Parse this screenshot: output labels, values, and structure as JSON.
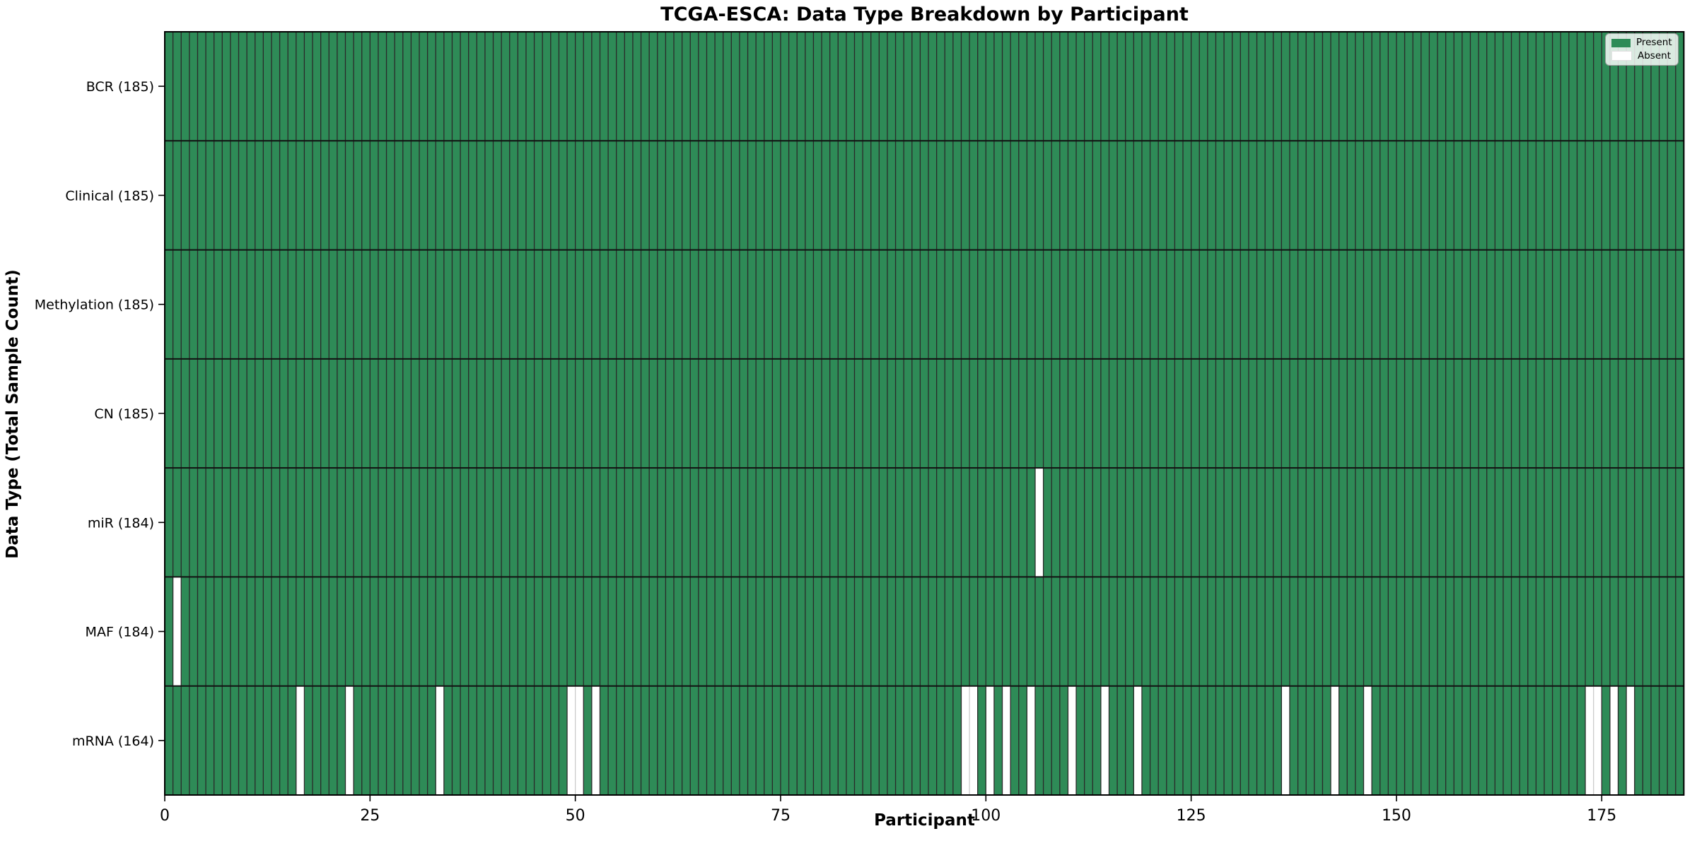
{
  "title": "TCGA-ESCA: Data Type Breakdown by Participant",
  "xlabel": "Participant",
  "ylabel": "Data Type (Total Sample Count)",
  "legend": {
    "present_label": "Present",
    "absent_label": "Absent"
  },
  "colors": {
    "present": "#2e8b57",
    "absent": "#ffffff",
    "bar_edge_dark": "#2a2a2a",
    "bar_edge_light": "#cccccc",
    "row_divider": "#111111",
    "plot_border": "#000000",
    "tick": "#000000",
    "text": "#000000"
  },
  "chart_data": {
    "type": "heatmap",
    "title": "TCGA-ESCA: Data Type Breakdown by Participant",
    "xlabel": "Participant",
    "ylabel": "Data Type (Total Sample Count)",
    "n_participants": 185,
    "x_ticks": [
      0,
      25,
      50,
      75,
      100,
      125,
      150,
      175
    ],
    "legend_position": "upper right",
    "rows": [
      {
        "label": "BCR (185)",
        "data_type": "BCR",
        "count": 185,
        "absent_participants": []
      },
      {
        "label": "Clinical (185)",
        "data_type": "Clinical",
        "count": 185,
        "absent_participants": []
      },
      {
        "label": "Methylation (185)",
        "data_type": "Methylation",
        "count": 185,
        "absent_participants": []
      },
      {
        "label": "CN (185)",
        "data_type": "CN",
        "count": 185,
        "absent_participants": []
      },
      {
        "label": "miR (184)",
        "data_type": "miR",
        "count": 184,
        "absent_participants": [
          106
        ]
      },
      {
        "label": "MAF (184)",
        "data_type": "MAF",
        "count": 184,
        "absent_participants": [
          1
        ]
      },
      {
        "label": "mRNA (164)",
        "data_type": "mRNA",
        "count": 164,
        "absent_participants": [
          16,
          22,
          33,
          49,
          50,
          52,
          97,
          98,
          100,
          102,
          105,
          110,
          114,
          118,
          136,
          142,
          146,
          173,
          174,
          176,
          178
        ]
      }
    ],
    "legend_entries": [
      {
        "label": "Present",
        "color": "#2e8b57"
      },
      {
        "label": "Absent",
        "color": "#ffffff"
      }
    ]
  }
}
